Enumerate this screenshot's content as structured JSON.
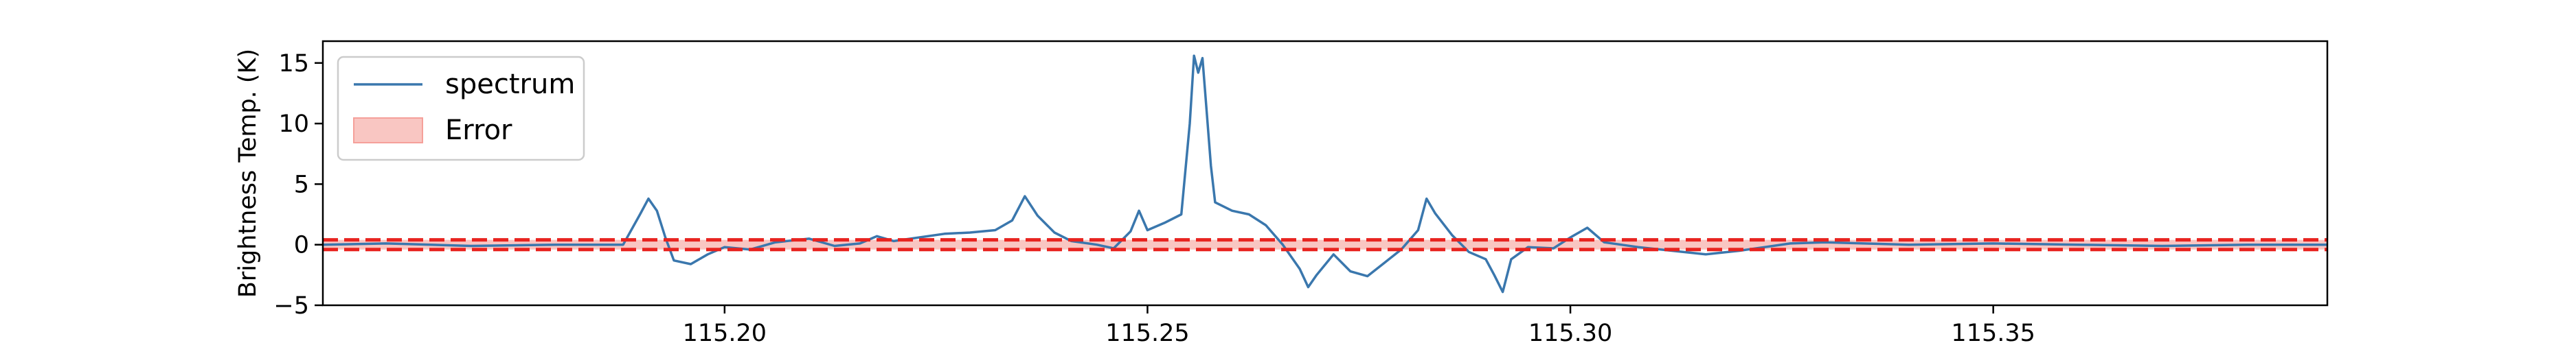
{
  "chart_data": {
    "type": "line",
    "title": "",
    "xlabel": "",
    "ylabel": "Brightness Temp. (K)",
    "xlim": [
      115.1525,
      115.3895
    ],
    "ylim": [
      -5,
      16.8
    ],
    "xticks": [
      115.2,
      115.25,
      115.3,
      115.35
    ],
    "xtick_labels": [
      "115.20",
      "115.25",
      "115.30",
      "115.35"
    ],
    "yticks": [
      -5,
      0,
      5,
      10,
      15
    ],
    "ytick_labels": [
      "−5",
      "0",
      "5",
      "10",
      "15"
    ],
    "legend_position": "upper-left",
    "legend": [
      {
        "label": "spectrum",
        "kind": "line",
        "color": "#3a77ad"
      },
      {
        "label": "Error",
        "kind": "patch",
        "color": "#f5a09a"
      }
    ],
    "error_band": [
      -0.4,
      0.4
    ],
    "series": [
      {
        "name": "spectrum",
        "color": "#3a77ad",
        "points": [
          [
            115.1525,
            0.0
          ],
          [
            115.16,
            0.1
          ],
          [
            115.17,
            -0.1
          ],
          [
            115.18,
            0.0
          ],
          [
            115.188,
            0.0
          ],
          [
            115.19,
            2.5
          ],
          [
            115.191,
            3.8
          ],
          [
            115.192,
            2.8
          ],
          [
            115.193,
            0.6
          ],
          [
            115.194,
            -1.3
          ],
          [
            115.196,
            -1.6
          ],
          [
            115.198,
            -0.8
          ],
          [
            115.2,
            -0.2
          ],
          [
            115.203,
            -0.4
          ],
          [
            115.206,
            0.2
          ],
          [
            115.21,
            0.5
          ],
          [
            115.213,
            -0.1
          ],
          [
            115.216,
            0.1
          ],
          [
            115.218,
            0.7
          ],
          [
            115.22,
            0.3
          ],
          [
            115.223,
            0.6
          ],
          [
            115.226,
            0.9
          ],
          [
            115.229,
            1.0
          ],
          [
            115.232,
            1.2
          ],
          [
            115.234,
            2.0
          ],
          [
            115.2355,
            4.0
          ],
          [
            115.237,
            2.4
          ],
          [
            115.239,
            1.0
          ],
          [
            115.241,
            0.3
          ],
          [
            115.244,
            0.0
          ],
          [
            115.246,
            -0.3
          ],
          [
            115.248,
            1.1
          ],
          [
            115.249,
            2.8
          ],
          [
            115.25,
            1.2
          ],
          [
            115.252,
            1.8
          ],
          [
            115.254,
            2.5
          ],
          [
            115.255,
            10.0
          ],
          [
            115.2555,
            15.6
          ],
          [
            115.256,
            14.2
          ],
          [
            115.2565,
            15.4
          ],
          [
            115.257,
            11.0
          ],
          [
            115.2575,
            6.5
          ],
          [
            115.258,
            3.5
          ],
          [
            115.26,
            2.8
          ],
          [
            115.262,
            2.5
          ],
          [
            115.264,
            1.6
          ],
          [
            115.266,
            0.0
          ],
          [
            115.268,
            -2.0
          ],
          [
            115.269,
            -3.5
          ],
          [
            115.27,
            -2.5
          ],
          [
            115.272,
            -0.8
          ],
          [
            115.274,
            -2.2
          ],
          [
            115.276,
            -2.6
          ],
          [
            115.278,
            -1.5
          ],
          [
            115.28,
            -0.4
          ],
          [
            115.282,
            1.2
          ],
          [
            115.283,
            3.8
          ],
          [
            115.284,
            2.6
          ],
          [
            115.286,
            0.8
          ],
          [
            115.288,
            -0.6
          ],
          [
            115.29,
            -1.2
          ],
          [
            115.291,
            -2.5
          ],
          [
            115.292,
            -3.9
          ],
          [
            115.293,
            -1.2
          ],
          [
            115.295,
            -0.2
          ],
          [
            115.298,
            -0.3
          ],
          [
            115.3,
            0.6
          ],
          [
            115.302,
            1.4
          ],
          [
            115.304,
            0.2
          ],
          [
            115.308,
            -0.2
          ],
          [
            115.312,
            -0.5
          ],
          [
            115.316,
            -0.8
          ],
          [
            115.32,
            -0.5
          ],
          [
            115.326,
            0.1
          ],
          [
            115.33,
            0.2
          ],
          [
            115.34,
            0.0
          ],
          [
            115.35,
            0.1
          ],
          [
            115.36,
            0.0
          ],
          [
            115.37,
            -0.1
          ],
          [
            115.38,
            0.0
          ],
          [
            115.3895,
            0.0
          ]
        ]
      }
    ]
  }
}
